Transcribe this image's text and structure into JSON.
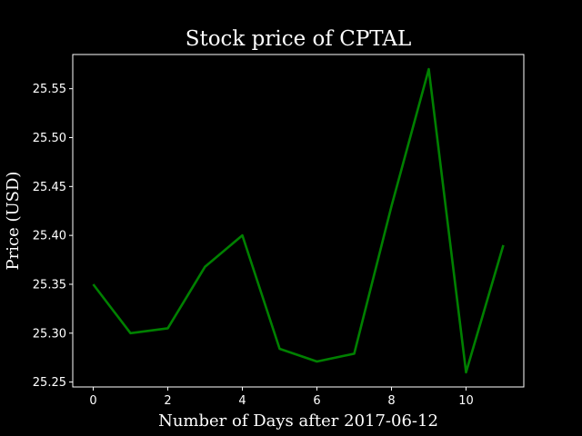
{
  "chart_data": {
    "type": "line",
    "title": "Stock price of CPTAL",
    "xlabel": "Number of Days after 2017-06-12",
    "ylabel": "Price (USD)",
    "x": [
      0,
      1,
      2,
      3,
      4,
      5,
      6,
      7,
      8,
      9,
      10,
      11
    ],
    "series": [
      {
        "values": [
          25.35,
          25.3,
          25.305,
          25.368,
          25.4,
          25.284,
          25.271,
          25.279,
          25.43,
          25.57,
          25.26,
          25.39
        ],
        "color": "#008000"
      }
    ],
    "xlim": [
      -0.55,
      11.55
    ],
    "ylim": [
      25.245,
      25.585
    ],
    "xticks": [
      "0",
      "2",
      "4",
      "6",
      "8",
      "10"
    ],
    "yticks": [
      "25.25",
      "25.30",
      "25.35",
      "25.40",
      "25.45",
      "25.50",
      "25.55"
    ],
    "grid": false,
    "background": "#000000",
    "foreground": "#ffffff"
  }
}
